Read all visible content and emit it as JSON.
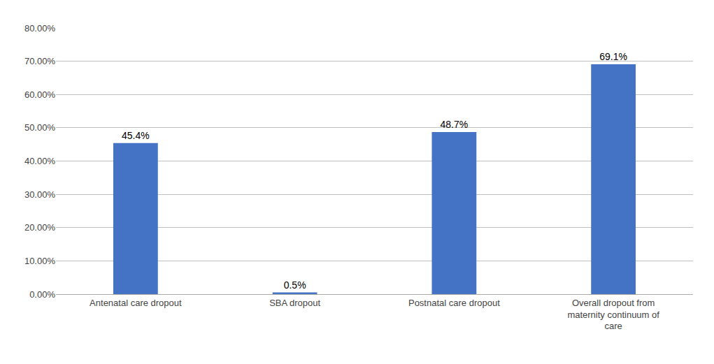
{
  "chart_data": {
    "type": "bar",
    "categories": [
      "Antenatal care dropout",
      "SBA dropout",
      "Postnatal care dropout",
      "Overall dropout from\nmaternity continuum of\ncare"
    ],
    "values": [
      45.4,
      0.5,
      48.7,
      69.1
    ],
    "value_labels": [
      "45.4%",
      "0.5%",
      "48.7%",
      "69.1%"
    ],
    "data_labels": true,
    "color": "#4472C4",
    "ylim": [
      0,
      80
    ],
    "yticks": [
      {
        "value": 0,
        "label": "0.00%"
      },
      {
        "value": 10,
        "label": "10.00%"
      },
      {
        "value": 20,
        "label": "20.00%"
      },
      {
        "value": 30,
        "label": "30.00%"
      },
      {
        "value": 40,
        "label": "40.00%"
      },
      {
        "value": 50,
        "label": "50.00%"
      },
      {
        "value": 60,
        "label": "60.00%"
      },
      {
        "value": 70,
        "label": "70.00%"
      },
      {
        "value": 80,
        "label": "80.00%"
      }
    ],
    "grid": true
  }
}
